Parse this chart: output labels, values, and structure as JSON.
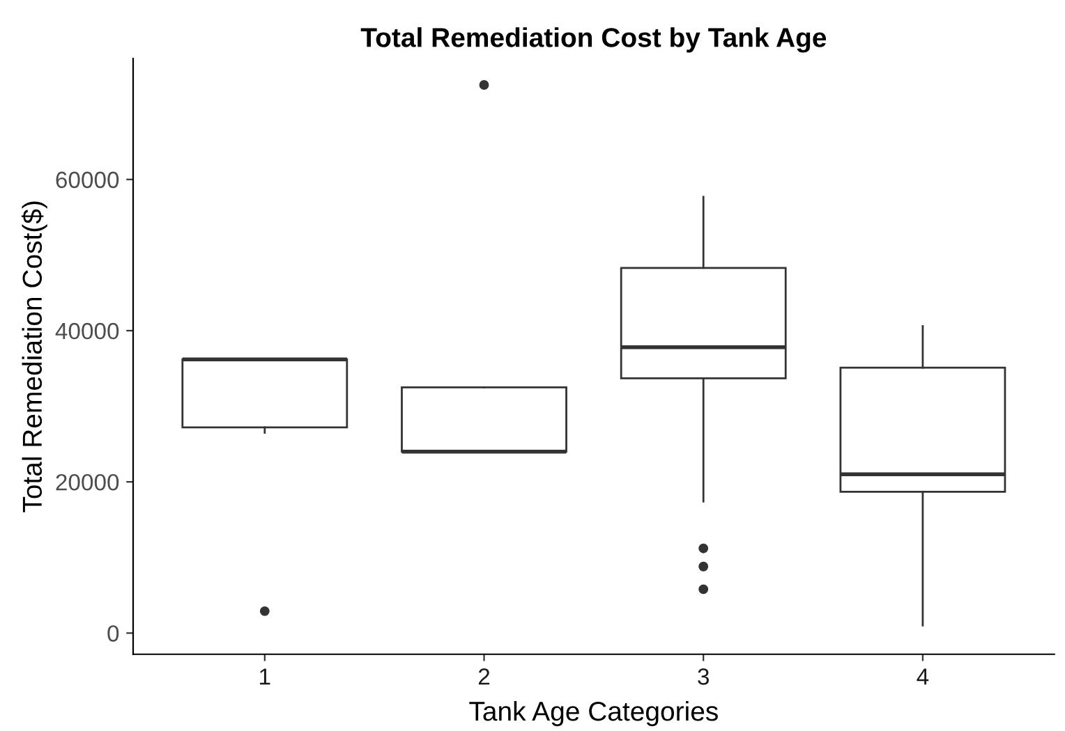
{
  "chart_data": {
    "type": "box",
    "title": "Total Remediation Cost by Tank Age",
    "xlabel": "Tank Age Categories",
    "ylabel": "Total Remediation Cost($)",
    "categories": [
      "1",
      "2",
      "3",
      "4"
    ],
    "boxes": [
      {
        "low": 26500,
        "q1": 27200,
        "median": 36200,
        "q3": 36200,
        "high": 36200,
        "outliers": [
          2900
        ]
      },
      {
        "low": 24000,
        "q1": 24000,
        "median": 24000,
        "q3": 32500,
        "high": 32500,
        "outliers": [
          72500
        ]
      },
      {
        "low": 17400,
        "q1": 33700,
        "median": 37800,
        "q3": 48300,
        "high": 57700,
        "outliers": [
          11200,
          8800,
          5800
        ]
      },
      {
        "low": 1000,
        "q1": 18700,
        "median": 21000,
        "q3": 35100,
        "high": 40600
      }
    ],
    "ylim": [
      -2800,
      76000
    ],
    "yticks": [
      0,
      20000,
      40000,
      60000
    ],
    "grid": false
  }
}
